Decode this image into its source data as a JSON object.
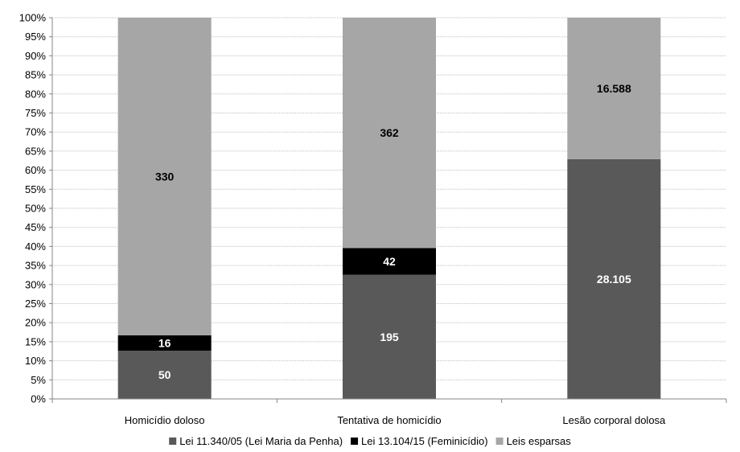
{
  "chart_data": {
    "type": "bar",
    "stacked": true,
    "normalized": true,
    "categories": [
      "Homicídio doloso",
      "Tentativa de homicídio",
      "Lesão corporal dolosa"
    ],
    "series": [
      {
        "name": "Lei 11.340/05 (Lei Maria da Penha)",
        "color": "#595959",
        "label_color": "#ffffff",
        "values": [
          50,
          195,
          28105
        ],
        "labels": [
          "50",
          "195",
          "28.105"
        ]
      },
      {
        "name": "Lei 13.104/15 (Feminicídio)",
        "color": "#000000",
        "label_color": "#ffffff",
        "values": [
          16,
          42,
          0
        ],
        "labels": [
          "16",
          "42",
          ""
        ]
      },
      {
        "name": "Leis esparsas",
        "color": "#a6a6a6",
        "label_color": "#000000",
        "values": [
          330,
          362,
          16588
        ],
        "labels": [
          "330",
          "362",
          "16.588"
        ]
      }
    ],
    "y_ticks": [
      "0%",
      "5%",
      "10%",
      "15%",
      "20%",
      "25%",
      "30%",
      "35%",
      "40%",
      "45%",
      "50%",
      "55%",
      "60%",
      "65%",
      "70%",
      "75%",
      "80%",
      "85%",
      "90%",
      "95%",
      "100%"
    ],
    "ylim": [
      0,
      100
    ],
    "grid": true,
    "legend_position": "bottom"
  }
}
